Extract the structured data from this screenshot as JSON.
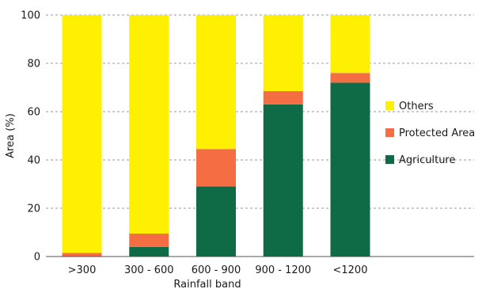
{
  "chart_data": {
    "type": "bar",
    "stacked": true,
    "title": "",
    "xlabel": "Rainfall band",
    "ylabel": "Area (%)",
    "ylim": [
      0,
      100
    ],
    "yticks": [
      0,
      20,
      40,
      60,
      80,
      100
    ],
    "grid": true,
    "legend_position": "right",
    "categories": [
      ">300",
      "300 - 600",
      "600 - 900",
      "900 - 1200",
      "<1200"
    ],
    "series": [
      {
        "name": "Agriculture",
        "color": "#0f6b45",
        "values": [
          0,
          4,
          29,
          63,
          72
        ]
      },
      {
        "name": "Protected Area",
        "color": "#f46d43",
        "values": [
          1.5,
          5.5,
          15.5,
          5.5,
          4
        ]
      },
      {
        "name": "Others",
        "color": "#ffef00",
        "values": [
          98.5,
          90.5,
          55.5,
          31.5,
          24
        ]
      }
    ]
  }
}
